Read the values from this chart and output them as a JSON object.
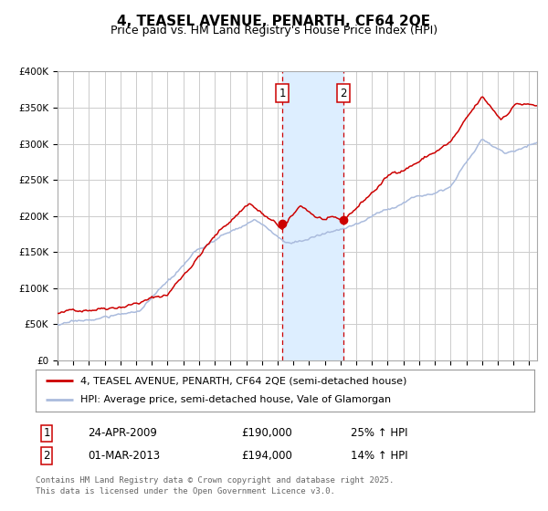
{
  "title": "4, TEASEL AVENUE, PENARTH, CF64 2QE",
  "subtitle": "Price paid vs. HM Land Registry's House Price Index (HPI)",
  "ylim": [
    0,
    400000
  ],
  "yticks": [
    0,
    50000,
    100000,
    150000,
    200000,
    250000,
    300000,
    350000,
    400000
  ],
  "ytick_labels": [
    "£0",
    "£50K",
    "£100K",
    "£150K",
    "£200K",
    "£250K",
    "£300K",
    "£350K",
    "£400K"
  ],
  "xlim": [
    1995,
    2025.5
  ],
  "background_color": "#ffffff",
  "plot_bg_color": "#ffffff",
  "grid_color": "#cccccc",
  "line1_color": "#cc0000",
  "line2_color": "#aabbdd",
  "marker_color": "#cc0000",
  "vline_color": "#cc0000",
  "shade_color": "#ddeeff",
  "event1_x": 2009.3,
  "event1_y": 190000,
  "event2_x": 2013.17,
  "event2_y": 194000,
  "legend_label1": "4, TEASEL AVENUE, PENARTH, CF64 2QE (semi-detached house)",
  "legend_label2": "HPI: Average price, semi-detached house, Vale of Glamorgan",
  "table_row1": [
    "1",
    "24-APR-2009",
    "£190,000",
    "25% ↑ HPI"
  ],
  "table_row2": [
    "2",
    "01-MAR-2013",
    "£194,000",
    "14% ↑ HPI"
  ],
  "footer": "Contains HM Land Registry data © Crown copyright and database right 2025.\nThis data is licensed under the Open Government Licence v3.0.",
  "title_fontsize": 11,
  "subtitle_fontsize": 9,
  "tick_fontsize": 7.5,
  "legend_fontsize": 8,
  "table_fontsize": 8.5,
  "footer_fontsize": 6.5
}
